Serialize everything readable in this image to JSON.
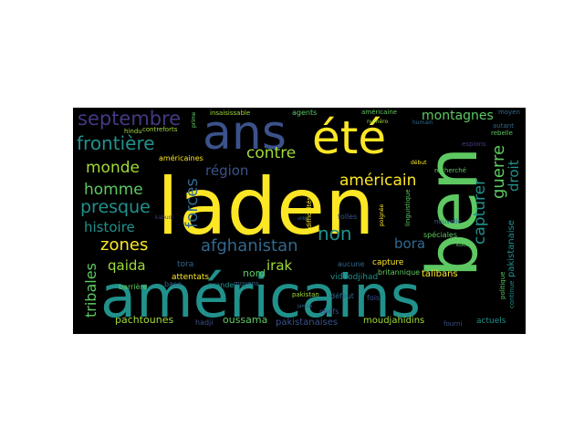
{
  "colors": {
    "background": "#000000",
    "yellow": "#fde725",
    "lime": "#a0da39",
    "green": "#5ec962",
    "teal": "#21918c",
    "blue": "#31688e",
    "indigo": "#3b528b",
    "purple": "#443983",
    "violet": "#482173",
    "dark": "#440154"
  },
  "words": [
    {
      "text": "laden"
    },
    {
      "text": "ben"
    },
    {
      "text": "américains"
    },
    {
      "text": "ans"
    },
    {
      "text": "été"
    },
    {
      "text": "septembre"
    },
    {
      "text": "frontière"
    },
    {
      "text": "contre"
    },
    {
      "text": "monde"
    },
    {
      "text": "région"
    },
    {
      "text": "homme"
    },
    {
      "text": "américain"
    },
    {
      "text": "presque"
    },
    {
      "text": "forces"
    },
    {
      "text": "histoire"
    },
    {
      "text": "zones"
    },
    {
      "text": "afghanistan"
    },
    {
      "text": "qaida"
    },
    {
      "text": "irak"
    },
    {
      "text": "tribales"
    },
    {
      "text": "non"
    },
    {
      "text": "bora"
    },
    {
      "text": "montagnes"
    },
    {
      "text": "guerre"
    },
    {
      "text": "capturer"
    },
    {
      "text": "droit"
    },
    {
      "text": "pachtounes"
    },
    {
      "text": "oussama"
    },
    {
      "text": "pakistanaises"
    },
    {
      "text": "moudjahidins"
    },
    {
      "text": "nord"
    },
    {
      "text": "tora"
    },
    {
      "text": "attentats"
    },
    {
      "text": "barrière"
    },
    {
      "text": "base"
    },
    {
      "text": "grande"
    },
    {
      "text": "moyens"
    },
    {
      "text": "hadji"
    },
    {
      "text": "chefs"
    },
    {
      "text": "pakistan"
    },
    {
      "text": "défaut"
    },
    {
      "text": "fois"
    },
    {
      "text": "talibans"
    },
    {
      "text": "britannique"
    },
    {
      "text": "vidéodjihad"
    },
    {
      "text": "capture"
    },
    {
      "text": "aucune"
    },
    {
      "text": "folles"
    },
    {
      "text": "spéciales"
    },
    {
      "text": "pakistanaise"
    },
    {
      "text": "continue"
    },
    {
      "text": "actuels"
    },
    {
      "text": "fourni"
    },
    {
      "text": "politique"
    },
    {
      "text": "américaines"
    },
    {
      "text": "contreforts"
    },
    {
      "text": "hindu"
    },
    {
      "text": "insaisissable"
    },
    {
      "text": "agents"
    },
    {
      "text": "américaine"
    },
    {
      "text": "moyen"
    },
    {
      "text": "numéro"
    },
    {
      "text": "autant"
    },
    {
      "text": "rebelle"
    },
    {
      "text": "espions"
    },
    {
      "text": "recherché"
    },
    {
      "text": "difficultés"
    },
    {
      "text": "nouvelle"
    },
    {
      "text": "linguistique"
    },
    {
      "text": "kabuol"
    },
    {
      "text": "prime"
    },
    {
      "text": "kuch"
    },
    {
      "text": "humain"
    },
    {
      "text": "début"
    },
    {
      "text": "ville"
    },
    {
      "text": "jamais"
    },
    {
      "text": "poignée"
    }
  ]
}
